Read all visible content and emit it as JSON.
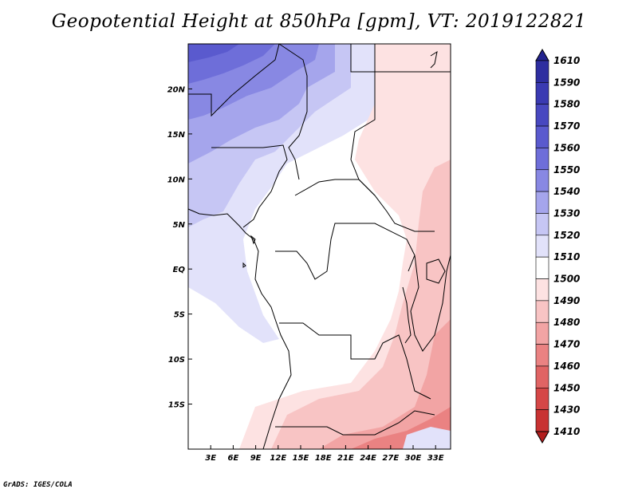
{
  "title": "Geopotential Height at 850hPa [gpm], VT: 2019122821",
  "credit": "GrADS: IGES/COLA",
  "map": {
    "lon_range": [
      0,
      35
    ],
    "lat_range": [
      -20,
      25
    ],
    "lat_ticks": [
      {
        "label": "20N",
        "value": 20
      },
      {
        "label": "15N",
        "value": 15
      },
      {
        "label": "10N",
        "value": 10
      },
      {
        "label": "5N",
        "value": 5
      },
      {
        "label": "EQ",
        "value": 0
      },
      {
        "label": "5S",
        "value": -5
      },
      {
        "label": "10S",
        "value": -10
      },
      {
        "label": "15S",
        "value": -15
      }
    ],
    "lon_ticks": [
      {
        "label": "3E",
        "value": 3
      },
      {
        "label": "6E",
        "value": 6
      },
      {
        "label": "9E",
        "value": 9
      },
      {
        "label": "12E",
        "value": 12
      },
      {
        "label": "15E",
        "value": 15
      },
      {
        "label": "18E",
        "value": 18
      },
      {
        "label": "21E",
        "value": 21
      },
      {
        "label": "24E",
        "value": 24
      },
      {
        "label": "27E",
        "value": 27
      },
      {
        "label": "30E",
        "value": 30
      },
      {
        "label": "33E",
        "value": 33
      }
    ]
  },
  "colorbar": {
    "levels": [
      {
        "label": "1610",
        "color": "#23238f"
      },
      {
        "label": "1590",
        "color": "#2e2ea0"
      },
      {
        "label": "1580",
        "color": "#3a3ab2"
      },
      {
        "label": "1570",
        "color": "#4848c0"
      },
      {
        "label": "1560",
        "color": "#5a5ace"
      },
      {
        "label": "1550",
        "color": "#6e6ed9"
      },
      {
        "label": "1540",
        "color": "#8888e3"
      },
      {
        "label": "1530",
        "color": "#a5a5ec"
      },
      {
        "label": "1520",
        "color": "#c6c6f4"
      },
      {
        "label": "1510",
        "color": "#e2e2fa"
      },
      {
        "label": "1500",
        "color": "#ffffff"
      },
      {
        "label": "1490",
        "color": "#fde2e2"
      },
      {
        "label": "1480",
        "color": "#f8c4c4"
      },
      {
        "label": "1470",
        "color": "#f2a4a4"
      },
      {
        "label": "1460",
        "color": "#ea8282"
      },
      {
        "label": "1450",
        "color": "#e06464"
      },
      {
        "label": "1430",
        "color": "#d54747"
      },
      {
        "label": "1410",
        "color": "#c83232"
      },
      {
        "label": "",
        "color": "#b21e1e"
      }
    ]
  }
}
